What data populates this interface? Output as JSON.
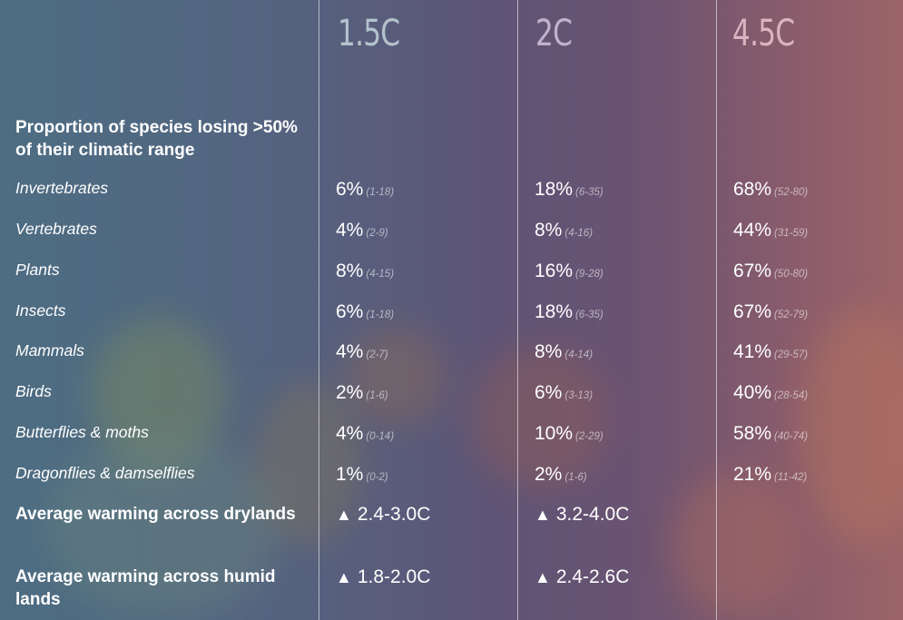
{
  "columns": [
    "1.5C",
    "2C",
    "4.5C"
  ],
  "section_title": "Proportion of species losing >50% of their climatic range",
  "rows": [
    {
      "label": "Invertebrates",
      "v1": "6%",
      "r1": "(1-18)",
      "v2": "18%",
      "r2": "(6-35)",
      "v3": "68%",
      "r3": "(52-80)"
    },
    {
      "label": "Vertebrates",
      "v1": "4%",
      "r1": "(2-9)",
      "v2": "8%",
      "r2": "(4-16)",
      "v3": "44%",
      "r3": "(31-59)"
    },
    {
      "label": "Plants",
      "v1": "8%",
      "r1": "(4-15)",
      "v2": "16%",
      "r2": "(9-28)",
      "v3": "67%",
      "r3": "(50-80)"
    },
    {
      "label": "Insects",
      "v1": "6%",
      "r1": "(1-18)",
      "v2": "18%",
      "r2": "(6-35)",
      "v3": "67%",
      "r3": "(52-79)"
    },
    {
      "label": "Mammals",
      "v1": "4%",
      "r1": "(2-7)",
      "v2": "8%",
      "r2": "(4-14)",
      "v3": "41%",
      "r3": "(29-57)"
    },
    {
      "label": "Birds",
      "v1": "2%",
      "r1": "(1-6)",
      "v2": "6%",
      "r2": "(3-13)",
      "v3": "40%",
      "r3": "(28-54)"
    },
    {
      "label": "Butterflies & moths",
      "v1": "4%",
      "r1": "(0-14)",
      "v2": "10%",
      "r2": "(2-29)",
      "v3": "58%",
      "r3": "(40-74)"
    },
    {
      "label": "Dragonflies & damselflies",
      "v1": "1%",
      "r1": "(0-2)",
      "v2": "2%",
      "r2": "(1-6)",
      "v3": "21%",
      "r3": "(11-42)"
    }
  ],
  "warming": [
    {
      "label": "Average warming across drylands",
      "icon": "triangle-up-icon",
      "glyph": "▲",
      "v1": "2.4-3.0C",
      "v2": "3.2-4.0C"
    },
    {
      "label": "Average warming across humid lands",
      "icon": "triangle-up-icon",
      "glyph": "▲",
      "v1": "1.8-2.0C",
      "v2": "2.4-2.6C"
    }
  ]
}
